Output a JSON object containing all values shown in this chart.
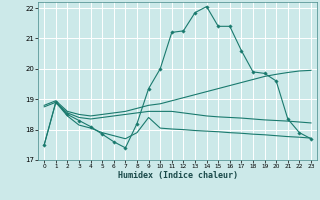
{
  "xlabel": "Humidex (Indice chaleur)",
  "bg_color": "#cce9e9",
  "grid_color": "#ffffff",
  "line_color": "#1a7a6e",
  "xlim": [
    -0.5,
    23.5
  ],
  "ylim": [
    17,
    22.2
  ],
  "yticks": [
    17,
    18,
    19,
    20,
    21,
    22
  ],
  "xticks": [
    0,
    1,
    2,
    3,
    4,
    5,
    6,
    7,
    8,
    9,
    10,
    11,
    12,
    13,
    14,
    15,
    16,
    17,
    18,
    19,
    20,
    21,
    22,
    23
  ],
  "curve1_x": [
    0,
    1,
    2,
    3,
    4,
    5,
    6,
    7,
    8,
    9,
    10,
    11,
    12,
    13,
    14,
    15,
    16,
    17,
    18,
    19,
    20,
    21,
    22,
    23
  ],
  "curve1_y": [
    17.5,
    18.9,
    18.5,
    18.3,
    18.1,
    17.85,
    17.6,
    17.4,
    18.2,
    19.35,
    20.0,
    21.2,
    21.25,
    21.85,
    22.05,
    21.4,
    21.4,
    20.6,
    19.9,
    19.85,
    19.6,
    18.35,
    17.9,
    17.7
  ],
  "curve2_x": [
    0,
    1,
    2,
    3,
    4,
    5,
    6,
    7,
    8,
    9,
    10,
    11,
    12,
    13,
    14,
    15,
    16,
    17,
    18,
    19,
    20,
    21,
    22,
    23
  ],
  "curve2_y": [
    18.8,
    18.95,
    18.6,
    18.5,
    18.45,
    18.5,
    18.55,
    18.6,
    18.7,
    18.8,
    18.85,
    18.95,
    19.05,
    19.15,
    19.25,
    19.35,
    19.45,
    19.55,
    19.65,
    19.75,
    19.82,
    19.88,
    19.93,
    19.95
  ],
  "curve3_x": [
    0,
    1,
    2,
    3,
    4,
    5,
    6,
    7,
    8,
    9,
    10,
    11,
    12,
    13,
    14,
    15,
    16,
    17,
    18,
    19,
    20,
    21,
    22,
    23
  ],
  "curve3_y": [
    18.75,
    18.9,
    18.55,
    18.4,
    18.35,
    18.4,
    18.45,
    18.5,
    18.55,
    18.6,
    18.6,
    18.6,
    18.55,
    18.5,
    18.45,
    18.42,
    18.4,
    18.38,
    18.35,
    18.32,
    18.3,
    18.28,
    18.25,
    18.22
  ],
  "curve4_x": [
    0,
    1,
    2,
    3,
    4,
    5,
    6,
    7,
    8,
    9,
    10,
    11,
    12,
    13,
    14,
    15,
    16,
    17,
    18,
    19,
    20,
    21,
    22,
    23
  ],
  "curve4_y": [
    17.5,
    18.9,
    18.45,
    18.15,
    18.05,
    17.9,
    17.8,
    17.7,
    17.9,
    18.4,
    18.05,
    18.02,
    18.0,
    17.97,
    17.95,
    17.93,
    17.9,
    17.88,
    17.85,
    17.83,
    17.8,
    17.77,
    17.75,
    17.72
  ]
}
